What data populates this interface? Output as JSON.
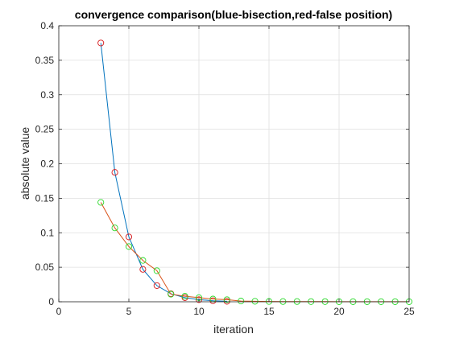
{
  "chart_data": {
    "type": "line",
    "title": "convergence comparison(blue-bisection,red-false position)",
    "xlabel": "iteration",
    "ylabel": "absolute value",
    "xlim": [
      0,
      25
    ],
    "ylim": [
      0,
      0.4
    ],
    "xticks": [
      0,
      5,
      10,
      15,
      20,
      25
    ],
    "yticks": [
      0,
      0.05,
      0.1,
      0.15,
      0.2,
      0.25,
      0.3,
      0.35,
      0.4
    ],
    "xtick_labels": [
      "0",
      "5",
      "10",
      "15",
      "20",
      "25"
    ],
    "ytick_labels": [
      "0",
      "0.05",
      "0.1",
      "0.15",
      "0.2",
      "0.25",
      "0.3",
      "0.35",
      "0.4"
    ],
    "grid": true,
    "legend": "none",
    "series": [
      {
        "line_color": "#0072bd",
        "marker": "circle",
        "marker_color": "#d7191c",
        "x": [
          3,
          4,
          5,
          6,
          7,
          8,
          9,
          10,
          11,
          12
        ],
        "y": [
          0.375,
          0.1875,
          0.094,
          0.047,
          0.0234,
          0.0117,
          0.0059,
          0.003,
          0.0015,
          0.0007
        ]
      },
      {
        "line_color": "#d95319",
        "marker": "circle",
        "marker_color": "#2bd92b",
        "x": [
          3,
          4,
          5,
          6,
          7,
          8,
          9,
          10,
          11,
          12,
          13,
          14,
          15,
          16,
          17,
          18,
          19,
          20,
          21,
          22,
          23,
          24,
          25
        ],
        "y": [
          0.144,
          0.107,
          0.08,
          0.06,
          0.045,
          0.011,
          0.008,
          0.006,
          0.004,
          0.003,
          0.001,
          0.0007,
          0.0005,
          0.0004,
          0.0003,
          0.0002,
          0.0002,
          0.0001,
          0.0001,
          0.0001,
          0.0001,
          0.0001,
          0.0001
        ]
      }
    ]
  }
}
